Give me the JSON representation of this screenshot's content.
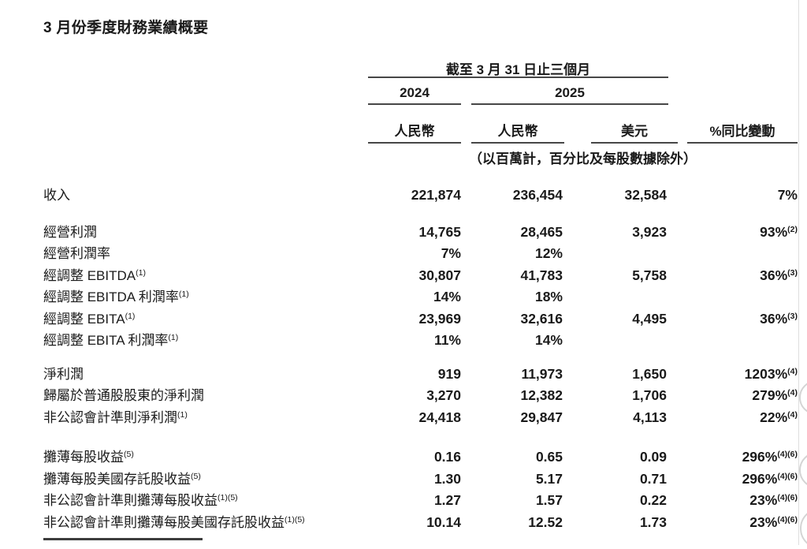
{
  "colors": {
    "text": "#1a1a1a",
    "rule_line": "#474747",
    "page_edge": "#dedede"
  },
  "page": {
    "title": "3 月份季度財務業績概要"
  },
  "table": {
    "period_header": "截至 3 月 31 日止三個月",
    "year_left": "2024",
    "year_right": "2025",
    "col_headers": {
      "c1": "人民幣",
      "c2": "人民幣",
      "c3": "美元",
      "c4": "%同比變動"
    },
    "unit_note": "（以百萬計，百分比及每股數據除外）",
    "sections": [
      {
        "rows": [
          {
            "label": "收入",
            "label_sup": "",
            "rmb_2024": "221,874",
            "rmb_2025": "236,454",
            "usd_2025": "32,584",
            "yoy": "7%",
            "yoy_sup": ""
          }
        ]
      },
      {
        "rows": [
          {
            "label": "經營利潤",
            "label_sup": "",
            "rmb_2024": "14,765",
            "rmb_2025": "28,465",
            "usd_2025": "3,923",
            "yoy": "93%",
            "yoy_sup": "(2)"
          },
          {
            "label": "經營利潤率",
            "label_sup": "",
            "rmb_2024": "7%",
            "rmb_2025": "12%",
            "usd_2025": "",
            "yoy": "",
            "yoy_sup": ""
          },
          {
            "label": "經調整 EBITDA",
            "label_sup": "(1)",
            "rmb_2024": "30,807",
            "rmb_2025": "41,783",
            "usd_2025": "5,758",
            "yoy": "36%",
            "yoy_sup": "(3)"
          },
          {
            "label": "經調整 EBITDA 利潤率",
            "label_sup": "(1)",
            "rmb_2024": "14%",
            "rmb_2025": "18%",
            "usd_2025": "",
            "yoy": "",
            "yoy_sup": ""
          },
          {
            "label": "經調整 EBITA",
            "label_sup": "(1)",
            "rmb_2024": "23,969",
            "rmb_2025": "32,616",
            "usd_2025": "4,495",
            "yoy": "36%",
            "yoy_sup": "(3)"
          },
          {
            "label": "經調整 EBITA 利潤率",
            "label_sup": "(1)",
            "rmb_2024": "11%",
            "rmb_2025": "14%",
            "usd_2025": "",
            "yoy": "",
            "yoy_sup": ""
          }
        ]
      },
      {
        "rows": [
          {
            "label": "淨利潤",
            "label_sup": "",
            "rmb_2024": "919",
            "rmb_2025": "11,973",
            "usd_2025": "1,650",
            "yoy": "1203%",
            "yoy_sup": "(4)"
          },
          {
            "label": "歸屬於普通股股東的淨利潤",
            "label_sup": "",
            "rmb_2024": "3,270",
            "rmb_2025": "12,382",
            "usd_2025": "1,706",
            "yoy": "279%",
            "yoy_sup": "(4)"
          },
          {
            "label": "非公認會計準則淨利潤",
            "label_sup": "(1)",
            "rmb_2024": "24,418",
            "rmb_2025": "29,847",
            "usd_2025": "4,113",
            "yoy": "22%",
            "yoy_sup": "(4)"
          }
        ]
      },
      {
        "rows": [
          {
            "label": "攤薄每股收益",
            "label_sup": "(5)",
            "rmb_2024": "0.16",
            "rmb_2025": "0.65",
            "usd_2025": "0.09",
            "yoy": "296%",
            "yoy_sup": "(4)(6)"
          },
          {
            "label": "攤薄每股美國存託股收益",
            "label_sup": "(5)",
            "rmb_2024": "1.30",
            "rmb_2025": "5.17",
            "usd_2025": "0.71",
            "yoy": "296%",
            "yoy_sup": "(4)(6)"
          },
          {
            "label": "非公認會計準則攤薄每股收益",
            "label_sup": "(1)(5)",
            "rmb_2024": "1.27",
            "rmb_2025": "1.57",
            "usd_2025": "0.22",
            "yoy": "23%",
            "yoy_sup": "(4)(6)"
          },
          {
            "label": "非公認會計準則攤薄每股美國存託股收益",
            "label_sup": "(1)(5)",
            "rmb_2024": "10.14",
            "rmb_2025": "12.52",
            "usd_2025": "1.73",
            "yoy": "23%",
            "yoy_sup": "(4)(6)"
          }
        ]
      }
    ]
  }
}
